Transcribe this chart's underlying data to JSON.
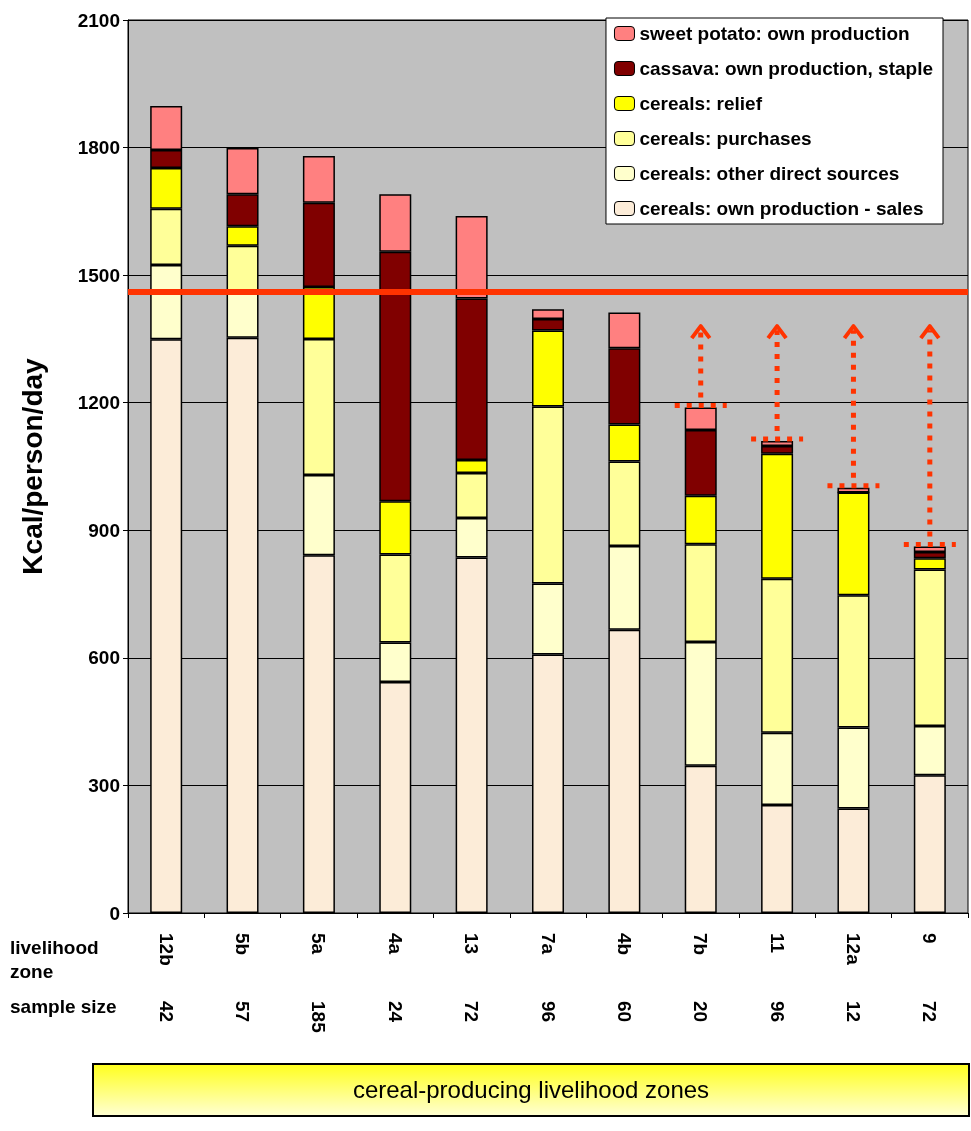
{
  "chart_data": {
    "type": "bar",
    "stacked": true,
    "ylabel": "Kcal/person/day",
    "xlabel": "livelihood zone",
    "categories": [
      "12b",
      "5b",
      "5a",
      "4a",
      "13",
      "7a",
      "4b",
      "7b",
      "11",
      "12a",
      "9"
    ],
    "series": [
      {
        "name": "cereals: own production - sales",
        "color": "#fcecd8",
        "values": [
          1349,
          1353,
          841,
          543,
          836,
          608,
          666,
          346,
          254,
          246,
          324
        ]
      },
      {
        "name": "cereals: other direct sources",
        "color": "#ffffcc",
        "values": [
          175,
          107,
          189,
          93,
          93,
          167,
          197,
          291,
          170,
          190,
          116
        ]
      },
      {
        "name": "cereals: purchases",
        "color": "#ffff99",
        "values": [
          132,
          109,
          320,
          207,
          106,
          416,
          199,
          230,
          362,
          311,
          368
        ]
      },
      {
        "name": "cereals: relief",
        "color": "#ffff00",
        "values": [
          96,
          46,
          122,
          125,
          30,
          179,
          87,
          114,
          294,
          242,
          26
        ]
      },
      {
        "name": "cassava: own production, staple",
        "color": "#800000",
        "values": [
          42,
          75,
          198,
          587,
          380,
          27,
          179,
          155,
          18,
          0,
          15
        ]
      },
      {
        "name": "sweet potato: own production",
        "color": "#ff8080",
        "values": [
          104,
          109,
          110,
          135,
          194,
          23,
          84,
          53,
          12,
          11,
          13
        ]
      }
    ],
    "ylim": [
      0,
      2100
    ],
    "yticks": [
      0,
      300,
      600,
      900,
      1200,
      1500,
      1800,
      2100
    ],
    "grid": "y",
    "legend": "top right",
    "ref_lines": [
      {
        "axis": "y",
        "value": 1460,
        "color": "#ff3300"
      }
    ],
    "annotations": [
      "sample size",
      "42",
      "57",
      "185",
      "24",
      "72",
      "96",
      "60",
      "20",
      "96",
      "12",
      "72",
      "cereal-producing livelihood zones"
    ]
  }
}
